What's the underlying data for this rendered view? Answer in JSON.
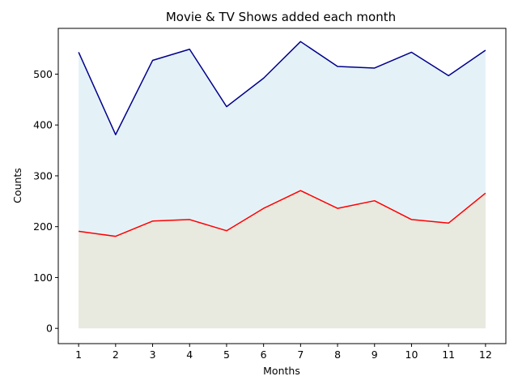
{
  "chart_data": {
    "type": "area",
    "title": "Movie & TV Shows added each month",
    "xlabel": "Months",
    "ylabel": "Counts",
    "x": [
      1,
      2,
      3,
      4,
      5,
      6,
      7,
      8,
      9,
      10,
      11,
      12
    ],
    "xticks": [
      "1",
      "2",
      "3",
      "4",
      "5",
      "6",
      "7",
      "8",
      "9",
      "10",
      "11",
      "12"
    ],
    "yticks": [
      "0",
      "100",
      "200",
      "300",
      "400",
      "500"
    ],
    "ylim": [
      -30,
      590
    ],
    "xlim": [
      0.45,
      12.55
    ],
    "grid": false,
    "series": [
      {
        "values": [
          543,
          381,
          527,
          549,
          436,
          492,
          564,
          515,
          512,
          543,
          497,
          547
        ],
        "line_color": "#00008b",
        "fill_color": "#e4f2f8"
      },
      {
        "values": [
          191,
          181,
          211,
          214,
          192,
          236,
          271,
          236,
          251,
          214,
          207,
          266
        ],
        "line_color": "#ff0000",
        "fill_color": "#e8e9df"
      }
    ]
  }
}
